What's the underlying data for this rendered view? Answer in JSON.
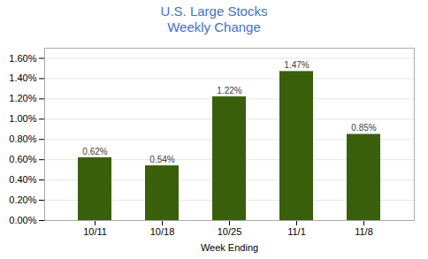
{
  "chart_data": {
    "type": "bar",
    "title": "U.S. Large Stocks",
    "subtitle": "Weekly Change",
    "xlabel": "Week Ending",
    "categories": [
      "10/11",
      "10/18",
      "10/25",
      "11/1",
      "11/8"
    ],
    "values": [
      0.0062,
      0.0054,
      0.0122,
      0.0147,
      0.0085
    ],
    "value_labels": [
      "0.62%",
      "0.54%",
      "1.22%",
      "1.47%",
      "0.85%"
    ],
    "data_labels": true,
    "color": "#3A5F0B",
    "ylim": [
      0,
      0.017
    ],
    "yticks": [
      {
        "value": 0.0,
        "label": "0.00%"
      },
      {
        "value": 0.002,
        "label": "0.20%"
      },
      {
        "value": 0.004,
        "label": "0.40%"
      },
      {
        "value": 0.006,
        "label": "0.60%"
      },
      {
        "value": 0.008,
        "label": "0.80%"
      },
      {
        "value": 0.01,
        "label": "1.00%"
      },
      {
        "value": 0.012,
        "label": "1.20%"
      },
      {
        "value": 0.014,
        "label": "1.40%"
      },
      {
        "value": 0.016,
        "label": "1.60%"
      }
    ],
    "grid": true
  }
}
